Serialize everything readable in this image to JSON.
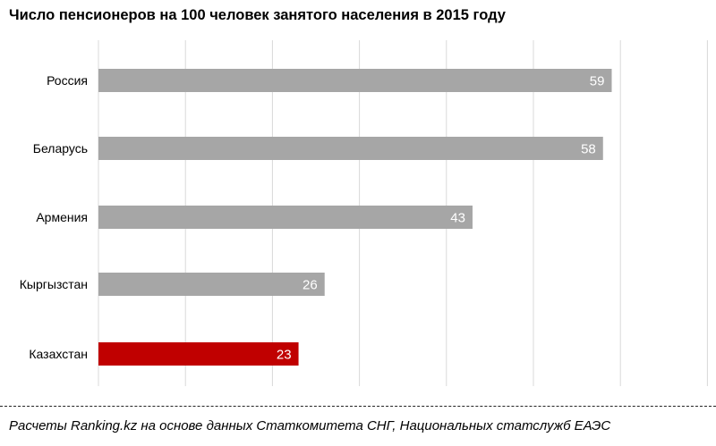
{
  "chart_data": {
    "type": "bar",
    "orientation": "horizontal",
    "title": "Число пенсионеров на 100 человек занятого населения в 2015 году",
    "categories": [
      "Россия",
      "Беларусь",
      "Армения",
      "Кыргызстан",
      "Казахстан"
    ],
    "values": [
      59,
      58,
      43,
      26,
      23
    ],
    "xlim": [
      0,
      70
    ],
    "grid": true,
    "colors": {
      "default_bar": "#a6a6a6",
      "highlight_bar": "#c00000",
      "highlight_category": "Казахстан",
      "gridline": "#d9d9d9",
      "data_label": "#ffffff"
    }
  },
  "footer": {
    "source": "Расчеты Ranking.kz на основе данных Статкомитета СНГ, Национальных статслужб ЕАЭС"
  }
}
